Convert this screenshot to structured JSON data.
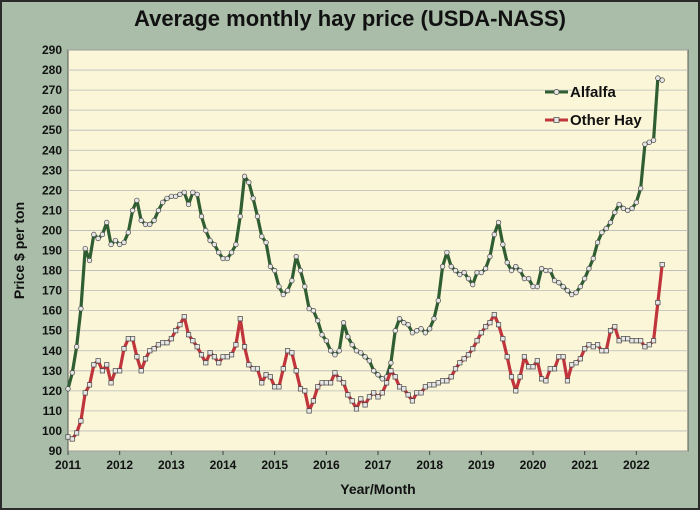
{
  "chart_data": {
    "type": "line",
    "title": "Average monthly hay price (USDA-NASS)",
    "xlabel": "Year/Month",
    "ylabel": "Price $ per ton",
    "ylim": [
      90,
      290
    ],
    "yticks": [
      90,
      100,
      110,
      120,
      130,
      140,
      150,
      160,
      170,
      180,
      190,
      200,
      210,
      220,
      230,
      240,
      250,
      260,
      270,
      280,
      290
    ],
    "xticks": [
      "2011",
      "2012",
      "2013",
      "2014",
      "2015",
      "2016",
      "2017",
      "2018",
      "2019",
      "2020",
      "2021",
      "2022"
    ],
    "legend": "top-right",
    "grid": true,
    "x_start": "2011-01",
    "x_interval": "month",
    "series": [
      {
        "name": "Alfalfa",
        "color": "#2f5e32",
        "values": [
          121,
          129,
          142,
          161,
          191,
          185,
          198,
          196,
          198,
          204,
          193,
          195,
          193,
          194,
          199,
          210,
          215,
          205,
          203,
          203,
          205,
          210,
          214,
          216,
          217,
          217,
          218,
          219,
          213,
          219,
          218,
          207,
          200,
          195,
          193,
          189,
          186,
          186,
          189,
          193,
          207,
          227,
          224,
          216,
          207,
          197,
          194,
          182,
          180,
          172,
          168,
          170,
          175,
          187,
          180,
          172,
          161,
          160,
          155,
          148,
          145,
          140,
          138,
          140,
          154,
          147,
          143,
          140,
          139,
          137,
          135,
          130,
          128,
          126,
          127,
          134,
          150,
          156,
          154,
          153,
          149,
          150,
          151,
          149,
          151,
          156,
          165,
          182,
          189,
          182,
          180,
          178,
          179,
          176,
          173,
          179,
          179,
          181,
          187,
          198,
          204,
          193,
          184,
          180,
          182,
          180,
          176,
          176,
          172,
          172,
          181,
          180,
          180,
          175,
          174,
          172,
          170,
          168,
          169,
          172,
          176,
          181,
          186,
          194,
          199,
          201,
          204,
          209,
          213,
          211,
          210,
          211,
          214,
          221,
          243,
          244,
          245,
          276,
          275
        ]
      },
      {
        "name": "Other Hay",
        "color": "#c0343c",
        "values": [
          97,
          96,
          99,
          105,
          119,
          123,
          133,
          135,
          130,
          133,
          124,
          130,
          130,
          141,
          146,
          146,
          137,
          130,
          136,
          140,
          141,
          143,
          144,
          144,
          146,
          150,
          153,
          157,
          148,
          145,
          142,
          138,
          134,
          139,
          137,
          134,
          137,
          137,
          138,
          143,
          156,
          142,
          133,
          131,
          131,
          124,
          128,
          127,
          122,
          122,
          131,
          140,
          139,
          130,
          121,
          120,
          110,
          115,
          122,
          124,
          124,
          124,
          129,
          126,
          124,
          118,
          115,
          111,
          116,
          113,
          117,
          119,
          117,
          119,
          124,
          130,
          127,
          122,
          121,
          118,
          115,
          119,
          119,
          122,
          123,
          123,
          124,
          125,
          125,
          127,
          131,
          134,
          136,
          138,
          141,
          145,
          149,
          152,
          154,
          158,
          153,
          146,
          137,
          127,
          120,
          127,
          137,
          132,
          132,
          135,
          126,
          125,
          131,
          131,
          137,
          137,
          125,
          133,
          134,
          136,
          141,
          143,
          142,
          143,
          140,
          140,
          150,
          152,
          145,
          146,
          146,
          145,
          145,
          145,
          142,
          143,
          145,
          164,
          183
        ]
      }
    ]
  }
}
